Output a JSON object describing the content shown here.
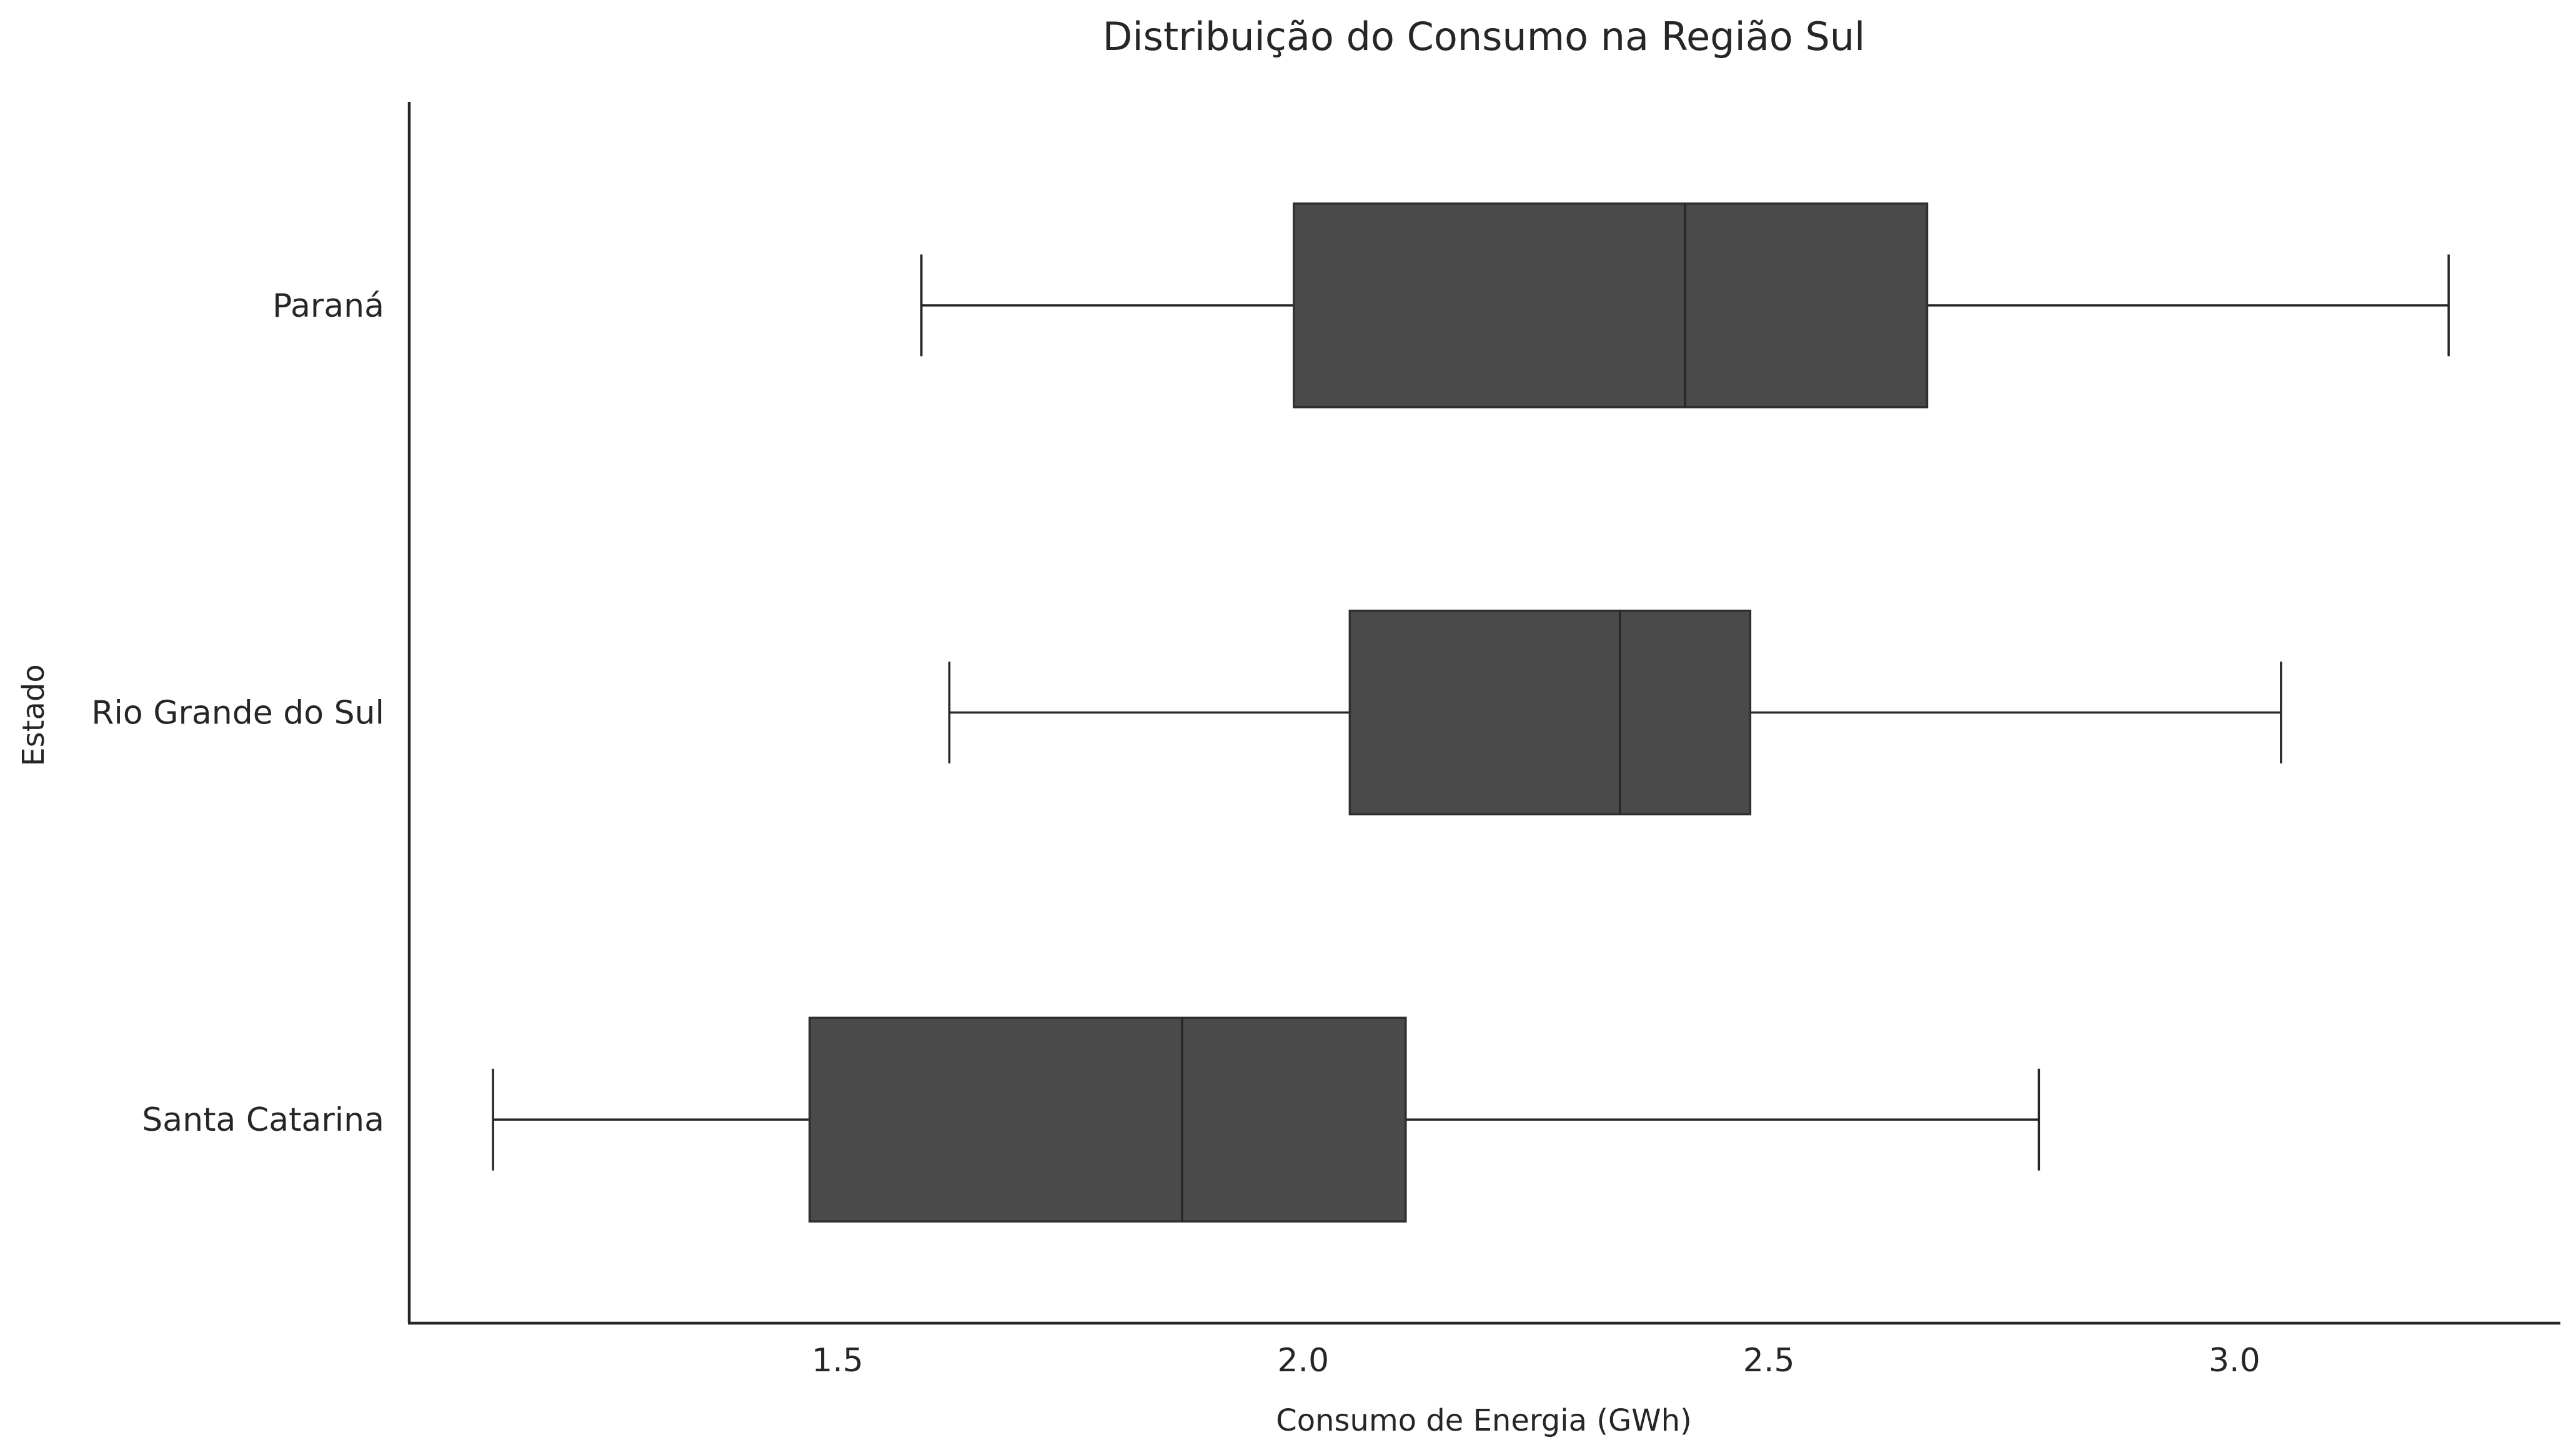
{
  "chart_data": {
    "type": "boxplot",
    "orientation": "horizontal",
    "title": "Distribuição do Consumo na Região Sul",
    "xlabel": "Consumo de Energia (GWh)",
    "ylabel": "Estado",
    "xlim": [
      1.04,
      3.35
    ],
    "xticks": [
      1.5,
      2.0,
      2.5,
      3.0
    ],
    "xtick_labels": [
      "1.5",
      "2.0",
      "2.5",
      "3.0"
    ],
    "grid": false,
    "box_color": "#4a4a4a",
    "line_color": "#262626",
    "categories": [
      "Paraná",
      "Rio Grande do Sul",
      "Santa Catarina"
    ],
    "series": [
      {
        "name": "Paraná",
        "whisker_low": 1.59,
        "q1": 1.99,
        "median": 2.41,
        "q3": 2.67,
        "whisker_high": 3.23
      },
      {
        "name": "Rio Grande do Sul",
        "whisker_low": 1.62,
        "q1": 2.05,
        "median": 2.34,
        "q3": 2.48,
        "whisker_high": 3.05
      },
      {
        "name": "Santa Catarina",
        "whisker_low": 1.13,
        "q1": 1.47,
        "median": 1.87,
        "q3": 2.11,
        "whisker_high": 2.79
      }
    ]
  }
}
